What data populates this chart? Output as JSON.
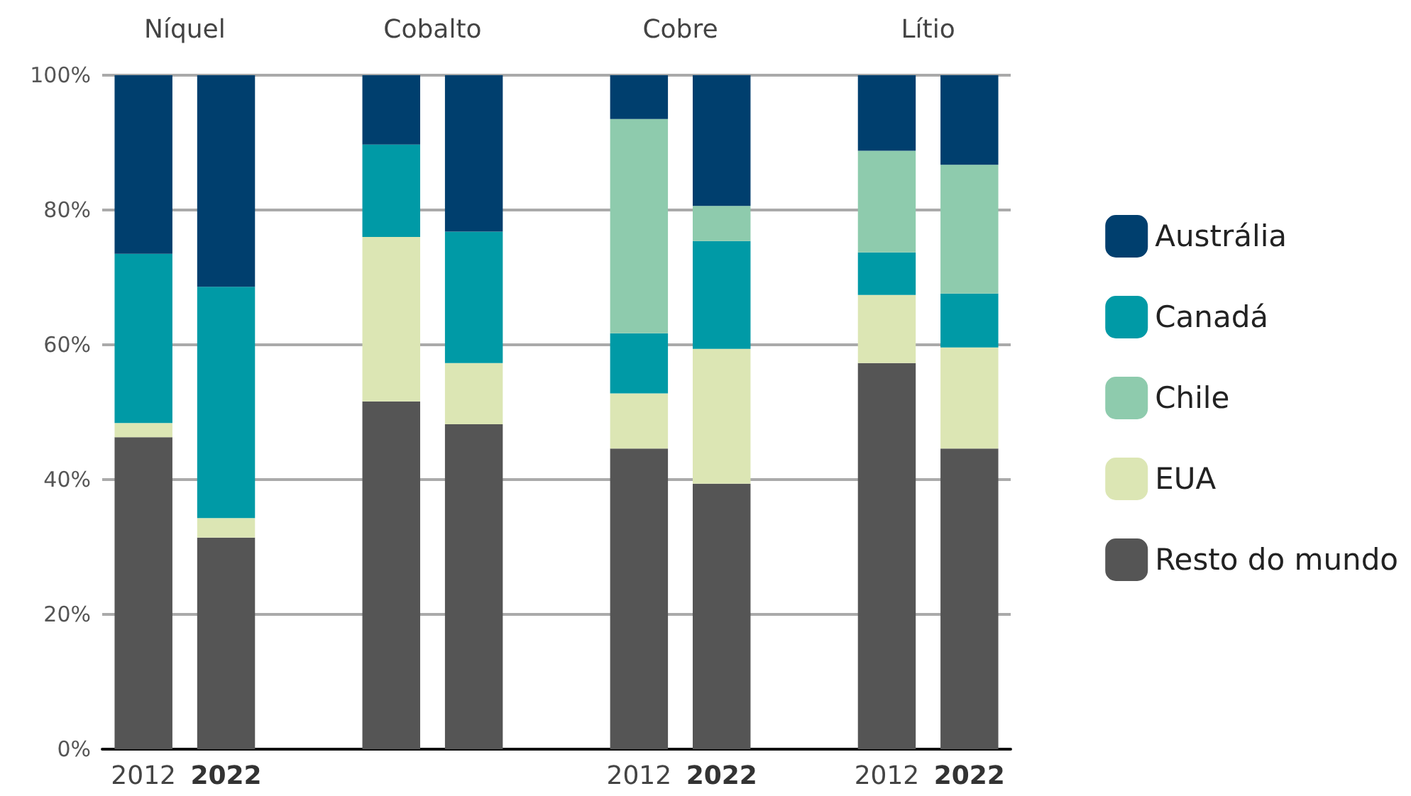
{
  "chart_data": {
    "type": "bar",
    "stacked": true,
    "categories": [
      "2012",
      "2022",
      null,
      null,
      "2012",
      "2022",
      "2012",
      "2022"
    ],
    "annotations": [
      "Níquel",
      "Cobalto",
      "Cobre",
      "Lítio"
    ],
    "series": [
      {
        "name": "Resto do mundo",
        "color": "#555555",
        "values": [
          46.3,
          31.4,
          51.6,
          48.2,
          44.6,
          39.4,
          57.3,
          44.6
        ]
      },
      {
        "name": "EUA",
        "color": "#dce6b4",
        "values": [
          2.1,
          2.9,
          24.4,
          9.1,
          8.2,
          20.0,
          10.1,
          15.0
        ]
      },
      {
        "name": "Canadá",
        "color": "#009aa6",
        "values": [
          25.1,
          34.3,
          13.7,
          19.5,
          8.9,
          16.0,
          6.3,
          8.0
        ]
      },
      {
        "name": "Chile",
        "color": "#8ecbad",
        "values": [
          0,
          0,
          0,
          0,
          31.8,
          5.2,
          15.1,
          19.1
        ]
      },
      {
        "name": "Austrália",
        "color": "#003f6e",
        "values": [
          26.5,
          31.4,
          10.3,
          23.2,
          6.5,
          19.4,
          11.2,
          13.3
        ]
      }
    ],
    "ylim": [
      0,
      100
    ],
    "yticks": [
      {
        "value": 0,
        "label": "0%"
      },
      {
        "value": 20,
        "label": "20%"
      },
      {
        "value": 40,
        "label": "40%"
      },
      {
        "value": 60,
        "label": "60%"
      },
      {
        "value": 80,
        "label": "80%"
      },
      {
        "value": 100,
        "label": "100%"
      }
    ],
    "grid": "y",
    "legend": "right"
  }
}
